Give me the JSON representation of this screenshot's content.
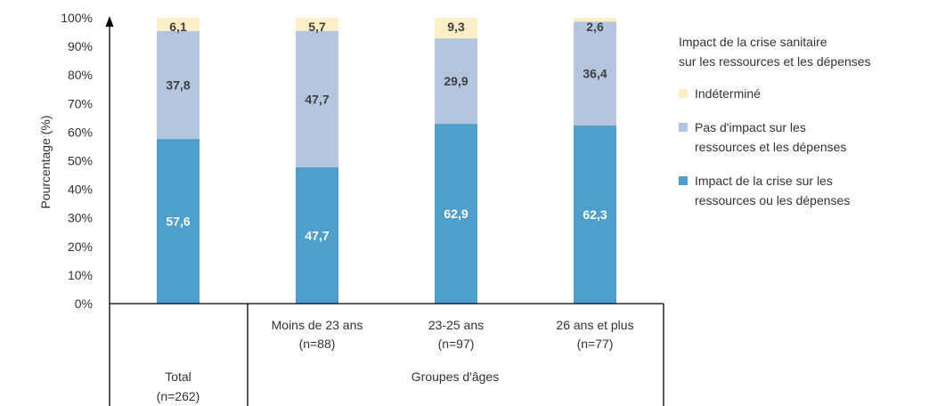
{
  "chart_data": {
    "type": "bar",
    "stacked": true,
    "ylabel": "Pourcentage (%)",
    "ylim": [
      0,
      100
    ],
    "yticks": [
      "0%",
      "10%",
      "20%",
      "30%",
      "40%",
      "50%",
      "60%",
      "70%",
      "80%",
      "90%",
      "100%"
    ],
    "categories": [
      {
        "line1": "",
        "line2": "",
        "line3": "Total",
        "line4": "(n=262)"
      },
      {
        "line1": "Moins de 23 ans",
        "line2": "(n=88)"
      },
      {
        "line1": "23-25 ans",
        "line2": "(n=97)"
      },
      {
        "line1": "26 ans et plus",
        "line2": "(n=77)"
      }
    ],
    "group_label": "Groupes d'âges",
    "legend": {
      "title_line1": "Impact de la crise sanitaire",
      "title_line2": "sur les ressources et les dépenses",
      "position": "right"
    },
    "series": [
      {
        "name_line1": "Impact de la crise sur les",
        "name_line2": "ressources ou les dépenses",
        "color": "#4e9fcc",
        "label_color": "#ffffff",
        "values": [
          57.6,
          47.7,
          62.9,
          62.3
        ],
        "labels": [
          "57,6",
          "47,7",
          "62,9",
          "62,3"
        ]
      },
      {
        "name_line1": "Pas d'impact sur les",
        "name_line2": "ressources et les dépenses",
        "color": "#b4c6df",
        "label_color": "#404040",
        "values": [
          37.8,
          47.7,
          29.9,
          36.4
        ],
        "labels": [
          "37,8",
          "47,7",
          "29,9",
          "36,4"
        ]
      },
      {
        "name_line1": "Indéterminé",
        "name_line2": "",
        "color": "#fcefc7",
        "label_color": "#404040",
        "values": [
          6.1,
          5.7,
          9.3,
          2.6
        ],
        "labels": [
          "6,1",
          "5,7",
          "9,3",
          "2,6"
        ]
      }
    ]
  }
}
